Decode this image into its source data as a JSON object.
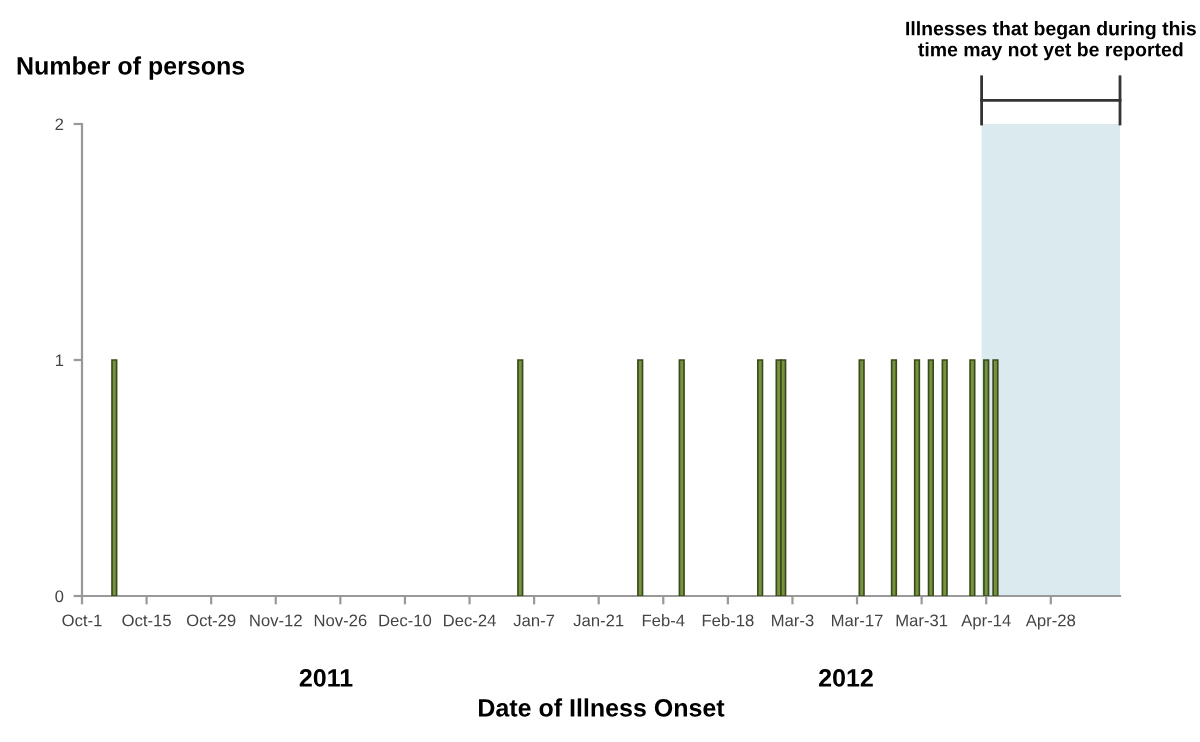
{
  "chart_data": {
    "type": "bar",
    "ylabel": "Number of persons",
    "xlabel": "Date of Illness Onset",
    "x": [
      "2011-10-08",
      "2012-01-04",
      "2012-01-30",
      "2012-02-08",
      "2012-02-25",
      "2012-02-29",
      "2012-03-01",
      "2012-03-18",
      "2012-03-25",
      "2012-03-30",
      "2012-04-02",
      "2012-04-05",
      "2012-04-11",
      "2012-04-14",
      "2012-04-16"
    ],
    "series": [
      {
        "color": "#77933c",
        "values": [
          1,
          1,
          1,
          1,
          1,
          1,
          1,
          1,
          1,
          1,
          1,
          1,
          1,
          1,
          1
        ]
      }
    ],
    "xlim": [
      "2011-10-01",
      "2012-05-13"
    ],
    "xticks": [
      {
        "value": "2011-10-01",
        "label": "Oct-1"
      },
      {
        "value": "2011-10-15",
        "label": "Oct-15"
      },
      {
        "value": "2011-10-29",
        "label": "Oct-29"
      },
      {
        "value": "2011-11-12",
        "label": "Nov-12"
      },
      {
        "value": "2011-11-26",
        "label": "Nov-26"
      },
      {
        "value": "2011-12-10",
        "label": "Dec-10"
      },
      {
        "value": "2011-12-24",
        "label": "Dec-24"
      },
      {
        "value": "2012-01-07",
        "label": "Jan-7"
      },
      {
        "value": "2012-01-21",
        "label": "Jan-21"
      },
      {
        "value": "2012-02-04",
        "label": "Feb-4"
      },
      {
        "value": "2012-02-18",
        "label": "Feb-18"
      },
      {
        "value": "2012-03-03",
        "label": "Mar-3"
      },
      {
        "value": "2012-03-17",
        "label": "Mar-17"
      },
      {
        "value": "2012-03-31",
        "label": "Mar-31"
      },
      {
        "value": "2012-04-14",
        "label": "Apr-14"
      },
      {
        "value": "2012-04-28",
        "label": "Apr-28"
      }
    ],
    "ylim": [
      0,
      2
    ],
    "yticks": [
      0,
      1,
      2
    ],
    "bands": [
      {
        "axis": "x",
        "from": "2012-04-13",
        "to": "2012-05-13",
        "label": "Illnesses that began during this\ntime may not yet be reported",
        "color": "#daeaef"
      }
    ],
    "annotations": [
      "2011",
      "2012"
    ],
    "grid": false,
    "legend": false
  }
}
